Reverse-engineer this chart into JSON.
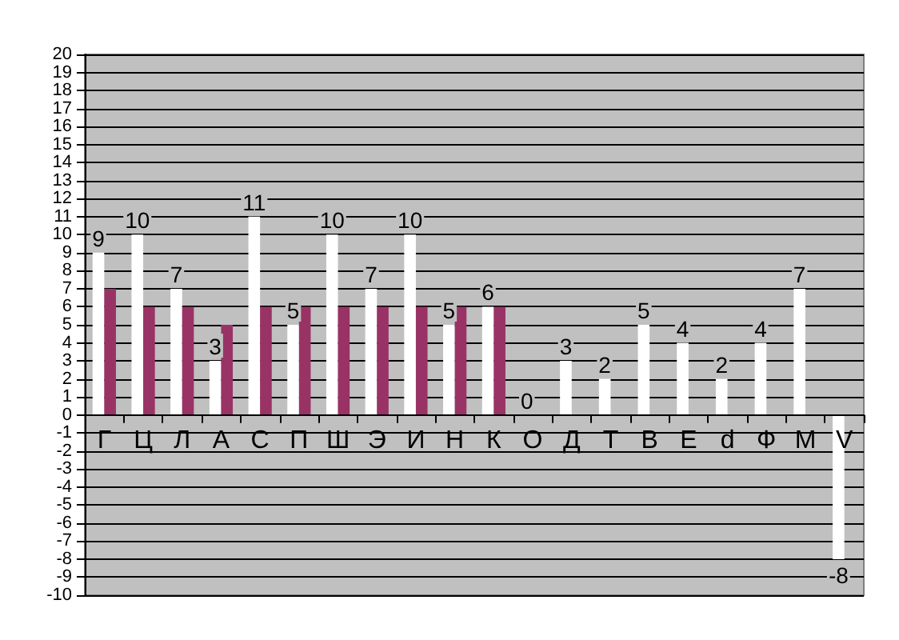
{
  "chart_data": {
    "type": "bar",
    "categories": [
      "Г",
      "Ц",
      "Л",
      "А",
      "С",
      "П",
      "Ш",
      "Э",
      "И",
      "Н",
      "К",
      "О",
      "Д",
      "Т",
      "В",
      "Е",
      "d",
      "Ф",
      "М",
      "V"
    ],
    "series": [
      {
        "color": "#ffffff",
        "values": [
          9,
          10,
          7,
          3,
          11,
          5,
          10,
          7,
          10,
          5,
          6,
          0,
          3,
          2,
          5,
          4,
          2,
          4,
          7,
          -8
        ],
        "value_labels": [
          "9",
          "10",
          "7",
          "3",
          "11",
          "5",
          "10",
          "7",
          "10",
          "5",
          "6",
          "0",
          "3",
          "2",
          "5",
          "4",
          "2",
          "4",
          "7",
          "-8"
        ]
      },
      {
        "color": "#993366",
        "values": [
          7,
          6,
          6,
          5,
          6,
          6,
          6,
          6,
          6,
          6,
          6,
          null,
          null,
          null,
          null,
          null,
          null,
          null,
          null,
          null
        ]
      }
    ],
    "ylim": [
      -10,
      20
    ],
    "yticks": [
      -10,
      -9,
      -8,
      -7,
      -6,
      -5,
      -4,
      -3,
      -2,
      -1,
      0,
      1,
      2,
      3,
      4,
      5,
      6,
      7,
      8,
      9,
      10,
      11,
      12,
      13,
      14,
      15,
      16,
      17,
      18,
      19,
      20
    ],
    "grid": "y"
  }
}
